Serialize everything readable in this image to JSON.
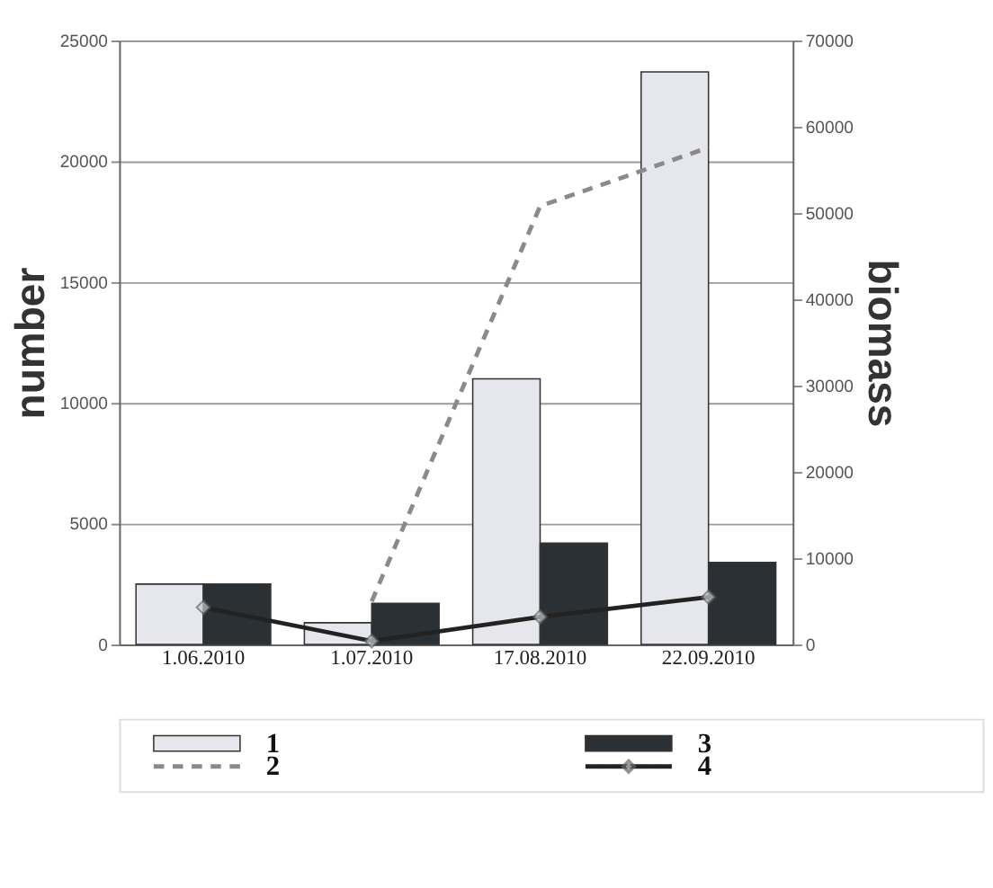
{
  "chart_data": {
    "type": "bar",
    "ylabel": "number",
    "y2label": "biomass",
    "categories": [
      "1.06.2010",
      "1.07.2010",
      "17.08.2010",
      "22.09.2010"
    ],
    "series": [
      {
        "name": "1",
        "color": "#e6e7ec",
        "values": [
          2500,
          900,
          11000,
          23700
        ]
      },
      {
        "name": "2",
        "type": "line",
        "axis": "y2",
        "color": "#8a8a8a",
        "line_style": "dashed",
        "marker": "none",
        "values": [
          null,
          5000,
          50800,
          57600
        ]
      },
      {
        "name": "3",
        "color": "#2b3035",
        "values": [
          2500,
          1700,
          4200,
          3400
        ]
      },
      {
        "name": "4",
        "type": "line",
        "axis": "y2",
        "color": "#222222",
        "line_style": "solid",
        "marker": "diamond",
        "values": [
          4300,
          400,
          3200,
          5500
        ]
      }
    ],
    "ylim": [
      0,
      25000
    ],
    "yticks": [
      0,
      5000,
      10000,
      15000,
      20000,
      25000
    ],
    "y2lim": [
      0,
      70000
    ],
    "y2ticks": [
      0,
      10000,
      20000,
      30000,
      40000,
      50000,
      60000,
      70000
    ],
    "grid": "y",
    "legend": "bottom"
  }
}
